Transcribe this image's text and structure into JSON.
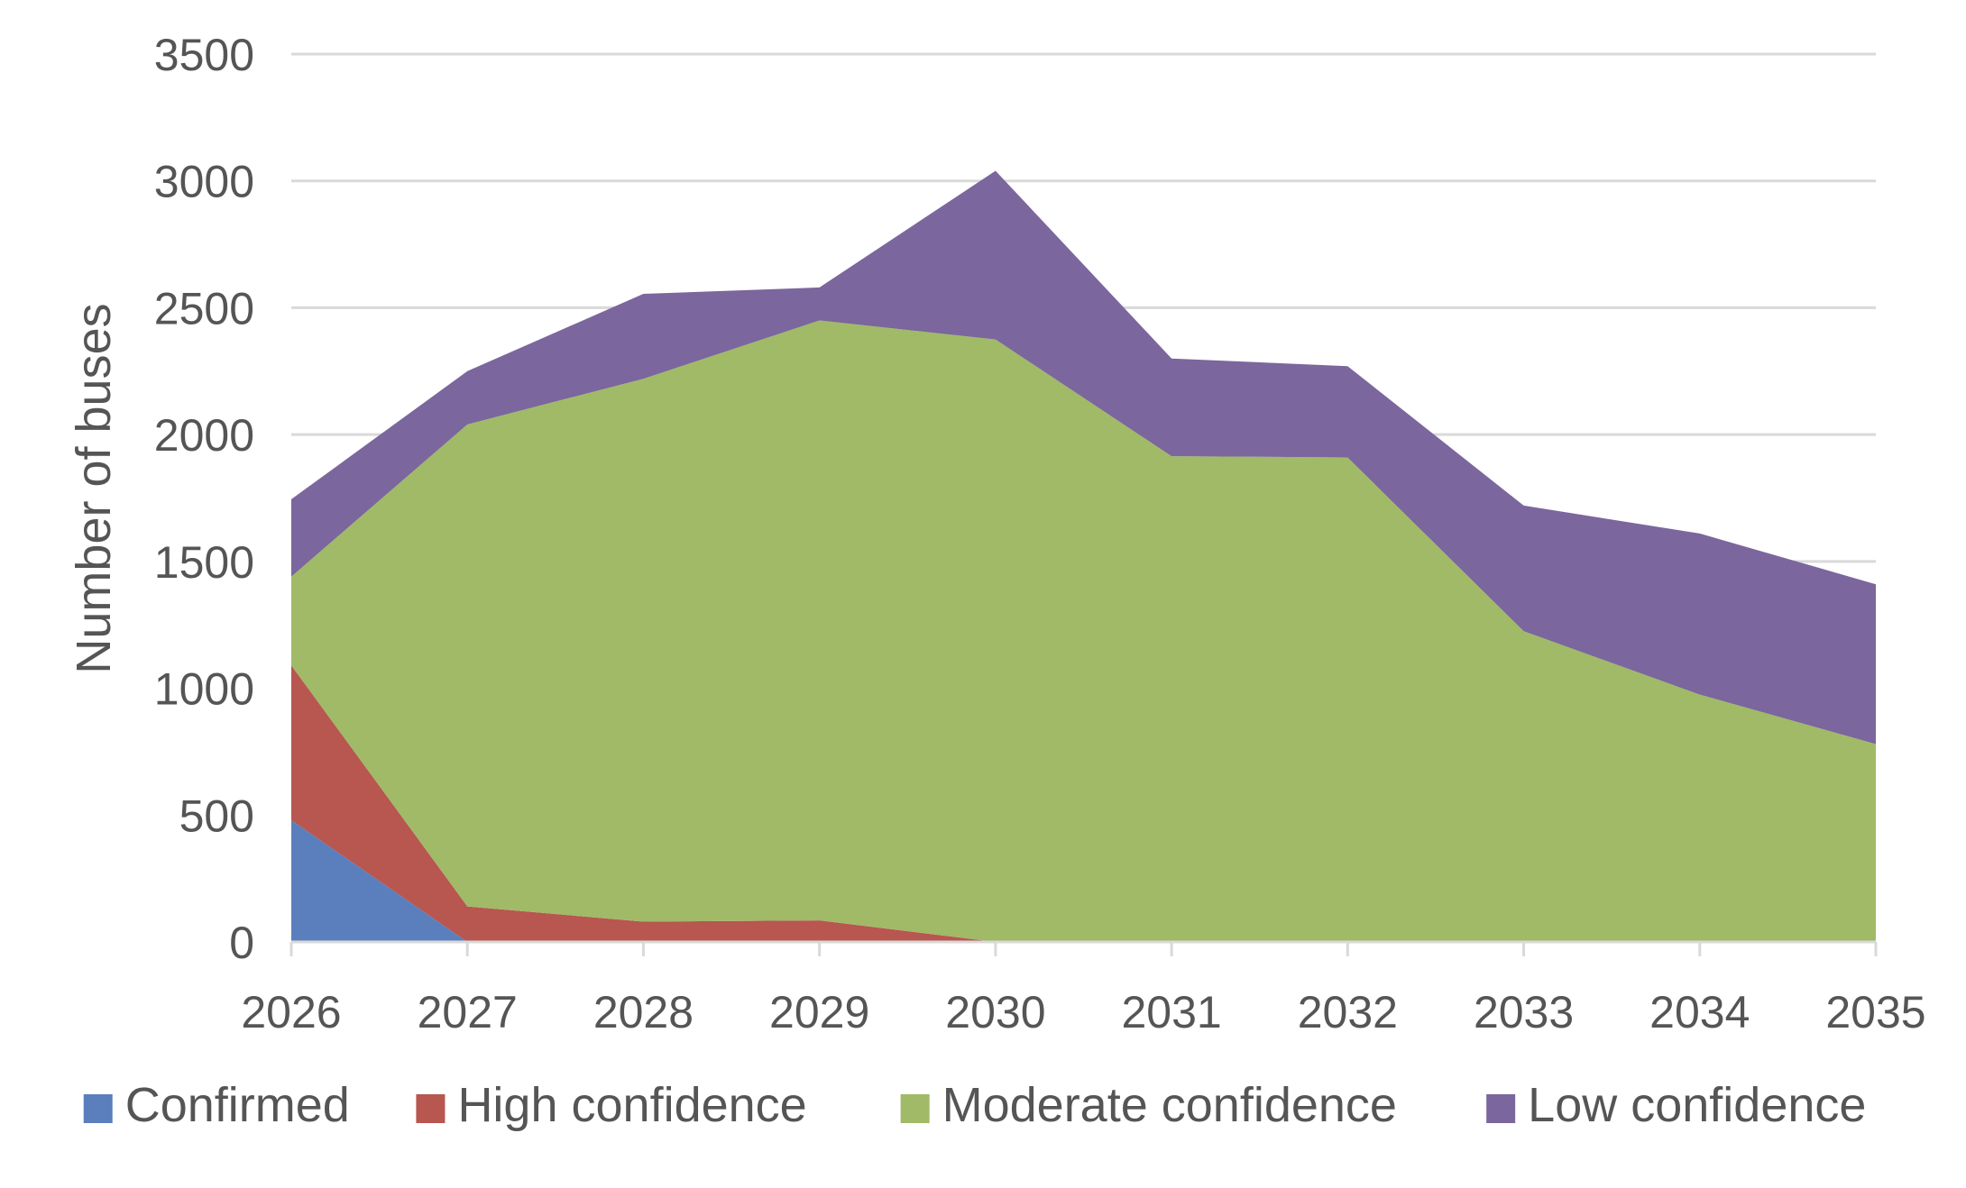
{
  "chart_data": {
    "type": "area",
    "stacked": true,
    "ylabel": "Number of buses",
    "xlabel": "",
    "ylim": [
      0,
      3500
    ],
    "yticks": [
      0,
      500,
      1000,
      1500,
      2000,
      2500,
      3000,
      3500
    ],
    "x": [
      "2026",
      "2027",
      "2028",
      "2029",
      "2030",
      "2031",
      "2032",
      "2033",
      "2034",
      "2035"
    ],
    "grid": true,
    "legend_position": "bottom",
    "series": [
      {
        "name": "Confirmed",
        "color": "#5b7fbd",
        "values": [
          480,
          0,
          0,
          0,
          0,
          0,
          0,
          0,
          0,
          0
        ]
      },
      {
        "name": "High confidence",
        "color": "#b85650",
        "values": [
          610,
          140,
          80,
          85,
          0,
          0,
          0,
          0,
          0,
          0
        ]
      },
      {
        "name": "Moderate confidence",
        "color": "#a0ba67",
        "values": [
          350,
          1900,
          2140,
          2365,
          2375,
          1915,
          1910,
          1225,
          975,
          780
        ]
      },
      {
        "name": "Low confidence",
        "color": "#7b669d",
        "values": [
          305,
          210,
          335,
          130,
          665,
          385,
          360,
          495,
          635,
          630
        ]
      }
    ]
  }
}
